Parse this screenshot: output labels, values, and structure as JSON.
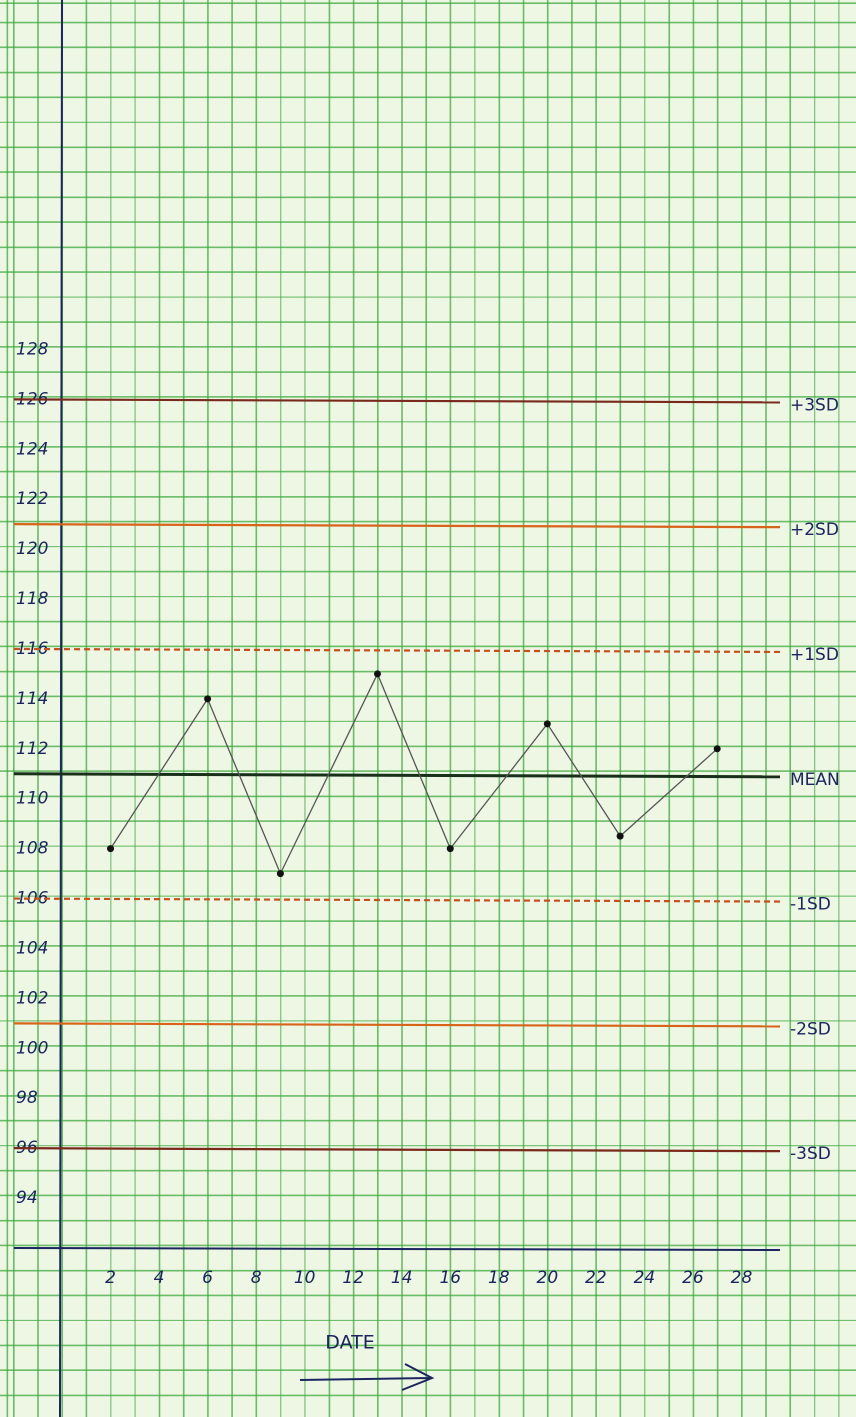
{
  "chart_data": {
    "type": "line",
    "x_label": "DATE",
    "x": [
      2,
      6,
      9,
      13,
      16,
      20,
      23,
      27
    ],
    "series": [
      {
        "color": "#555555",
        "values": [
          108,
          114,
          107,
          115,
          108,
          113,
          108.5,
          112
        ]
      }
    ],
    "xlim": [
      0,
      30
    ],
    "xticks": [
      2,
      4,
      6,
      8,
      10,
      12,
      14,
      16,
      18,
      20,
      22,
      24,
      26,
      28
    ],
    "ylim": [
      92,
      142
    ],
    "yticks": [
      94,
      96,
      98,
      100,
      102,
      104,
      106,
      108,
      110,
      112,
      114,
      116,
      118,
      120,
      122,
      124,
      126,
      128
    ],
    "reference_lines": [
      {
        "label": "+3SD",
        "value": 126,
        "color": "#7a2a1c",
        "style": "solid"
      },
      {
        "label": "+2SD",
        "value": 121,
        "color": "#d8641a",
        "style": "solid"
      },
      {
        "label": "+1SD",
        "value": 116,
        "color": "#c8501a",
        "style": "dashed"
      },
      {
        "label": "MEAN",
        "value": 111,
        "color": "#17301a",
        "style": "solid"
      },
      {
        "label": "-1SD",
        "value": 106,
        "color": "#c8501a",
        "style": "dashed"
      },
      {
        "label": "-2SD",
        "value": 101,
        "color": "#d8641a",
        "style": "solid"
      },
      {
        "label": "-3SD",
        "value": 96,
        "color": "#7a2a1c",
        "style": "solid"
      }
    ]
  }
}
